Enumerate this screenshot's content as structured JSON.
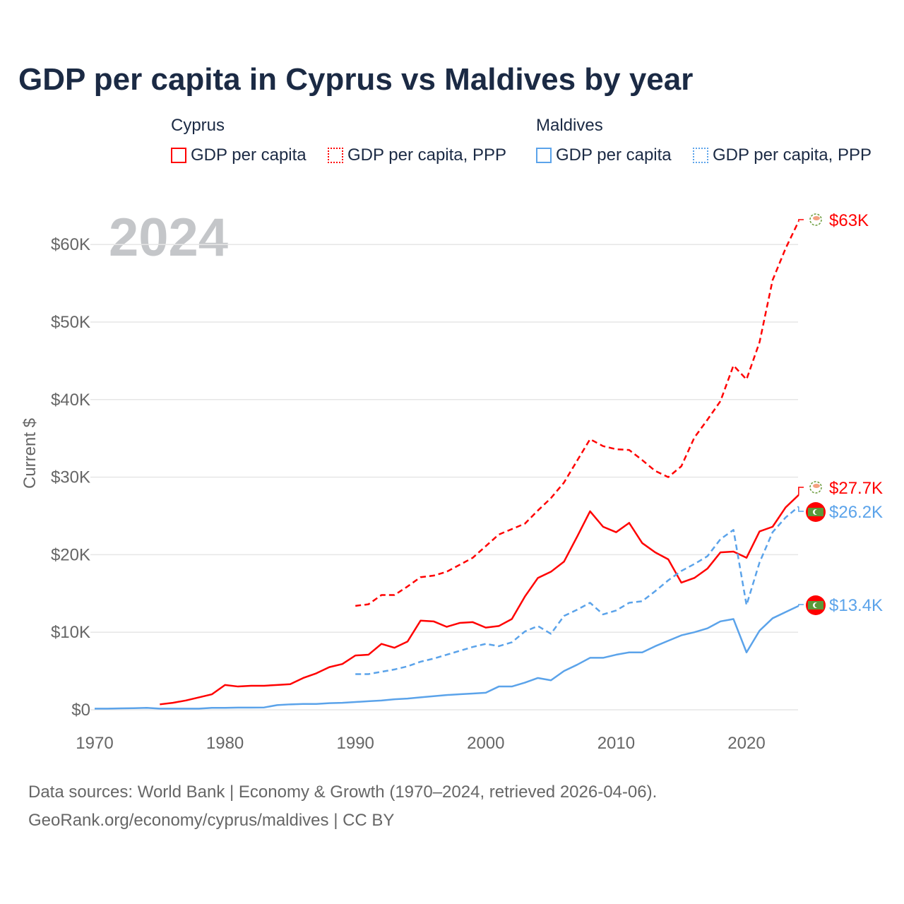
{
  "title": "GDP per capita in Cyprus vs Maldives by year",
  "legend": {
    "groups": [
      "Cyprus",
      "Maldives"
    ],
    "items": [
      "GDP per capita",
      "GDP per capita, PPP",
      "GDP per capita",
      "GDP per capita, PPP"
    ]
  },
  "colors": {
    "cyprus": "#ff0000",
    "maldives": "#5ba3ea"
  },
  "footer": {
    "line1": "Data sources: World Bank | Economy & Growth (1970–2024, retrieved 2026-04-06).",
    "line2": "GeoRank.org/economy/cyprus/maldives | CC BY"
  },
  "chart_data": {
    "type": "line",
    "title": "GDP per capita in Cyprus vs Maldives by year",
    "ylabel": "Current $",
    "watermark": "2024",
    "xlim": [
      1970,
      2024
    ],
    "ylim": [
      0,
      63000
    ],
    "x_ticks": [
      "1970",
      "1980",
      "1990",
      "2000",
      "2010",
      "2020"
    ],
    "y_ticks": [
      "$0",
      "$10K",
      "$20K",
      "$30K",
      "$40K",
      "$50K",
      "$60K"
    ],
    "end_labels": [
      "$63K",
      "$27.7K",
      "$26.2K",
      "$13.4K"
    ],
    "series": [
      {
        "name": "Cyprus GDP per capita",
        "style": "solid",
        "color": "#ff0000",
        "start": 1975,
        "values_k": [
          0.7,
          0.9,
          1.2,
          1.6,
          2.0,
          3.2,
          3.0,
          3.1,
          3.1,
          3.2,
          3.3,
          4.1,
          4.7,
          5.5,
          5.9,
          7.0,
          7.1,
          8.5,
          8.0,
          8.8,
          11.5,
          11.4,
          10.7,
          11.2,
          11.3,
          10.6,
          10.8,
          11.7,
          14.6,
          17.0,
          17.8,
          19.1,
          22.3,
          25.6,
          23.6,
          22.9,
          24.1,
          21.5,
          20.3,
          19.4,
          16.4,
          17.0,
          18.2,
          20.3,
          20.4,
          19.6,
          23.0,
          23.6,
          26.1,
          27.7
        ]
      },
      {
        "name": "Cyprus GDP per capita, PPP",
        "style": "dashed",
        "color": "#ff0000",
        "start": 1990,
        "values_k": [
          13.4,
          13.6,
          14.8,
          14.8,
          15.9,
          17.1,
          17.3,
          17.8,
          18.7,
          19.6,
          21.1,
          22.6,
          23.3,
          24.0,
          25.7,
          27.3,
          29.3,
          32.1,
          34.9,
          34.0,
          33.6,
          33.5,
          32.2,
          30.8,
          30.0,
          31.4,
          35.1,
          37.4,
          39.8,
          44.4,
          42.6,
          47.4,
          55.4,
          59.5,
          63.0
        ]
      },
      {
        "name": "Maldives GDP per capita",
        "style": "solid",
        "color": "#5ba3ea",
        "start": 1970,
        "values_k": [
          0.15,
          0.15,
          0.18,
          0.2,
          0.25,
          0.15,
          0.15,
          0.15,
          0.15,
          0.25,
          0.25,
          0.28,
          0.28,
          0.3,
          0.6,
          0.7,
          0.75,
          0.75,
          0.85,
          0.9,
          1.0,
          1.1,
          1.2,
          1.35,
          1.45,
          1.6,
          1.75,
          1.9,
          2.0,
          2.1,
          2.2,
          3.0,
          3.0,
          3.5,
          4.1,
          3.8,
          5.0,
          5.8,
          6.7,
          6.7,
          7.1,
          7.4,
          7.4,
          8.2,
          8.9,
          9.6,
          10.0,
          10.5,
          11.4,
          11.7,
          7.4,
          10.2,
          11.8,
          12.6,
          13.4
        ]
      },
      {
        "name": "Maldives GDP per capita, PPP",
        "style": "dashed",
        "color": "#5ba3ea",
        "start": 1990,
        "values_k": [
          4.6,
          4.6,
          4.9,
          5.2,
          5.6,
          6.2,
          6.6,
          7.1,
          7.6,
          8.1,
          8.5,
          8.2,
          8.7,
          10.1,
          10.8,
          9.8,
          12.1,
          12.9,
          13.8,
          12.3,
          12.8,
          13.8,
          14.0,
          15.3,
          16.7,
          17.9,
          18.8,
          19.8,
          22.0,
          23.2,
          13.5,
          19.0,
          22.9,
          24.8,
          26.2
        ]
      }
    ]
  }
}
